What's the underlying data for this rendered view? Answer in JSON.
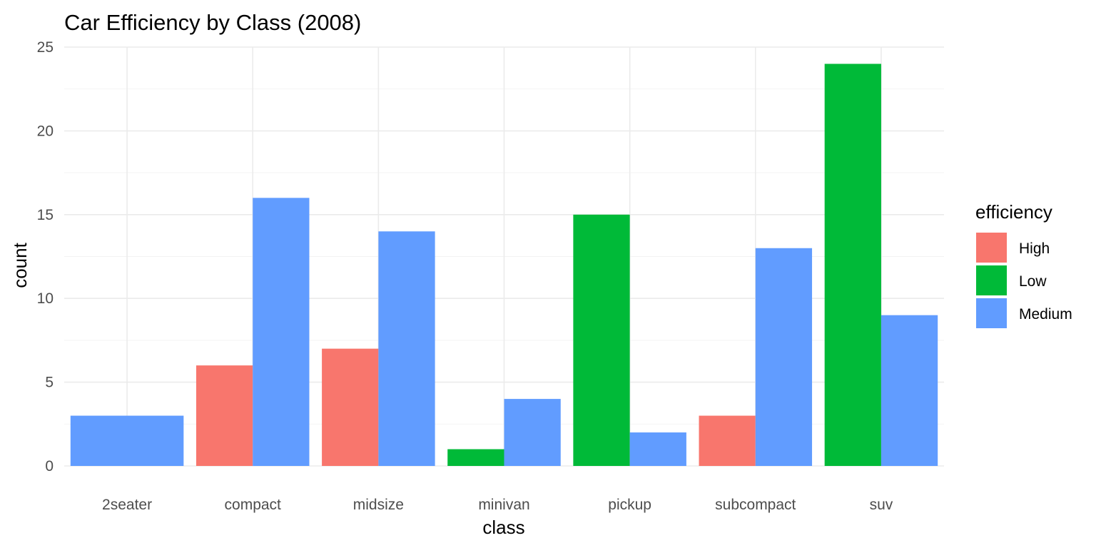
{
  "chart_data": {
    "type": "bar",
    "title": "Car Efficiency by Class (2008)",
    "xlabel": "class",
    "ylabel": "count",
    "categories": [
      "2seater",
      "compact",
      "midsize",
      "minivan",
      "pickup",
      "subcompact",
      "suv"
    ],
    "series": [
      {
        "name": "High",
        "color": "#F8766D",
        "values": [
          null,
          6,
          7,
          null,
          null,
          3,
          null
        ]
      },
      {
        "name": "Low",
        "color": "#00BA38",
        "values": [
          null,
          null,
          null,
          1,
          15,
          null,
          24
        ]
      },
      {
        "name": "Medium",
        "color": "#619CFF",
        "values": [
          3,
          16,
          14,
          4,
          2,
          13,
          9
        ]
      }
    ],
    "ylim": [
      0,
      25
    ],
    "yticks": [
      0,
      5,
      10,
      15,
      20,
      25
    ],
    "grid": true,
    "bar_position": "dodge",
    "legend": {
      "title": "efficiency",
      "position": "right"
    }
  }
}
